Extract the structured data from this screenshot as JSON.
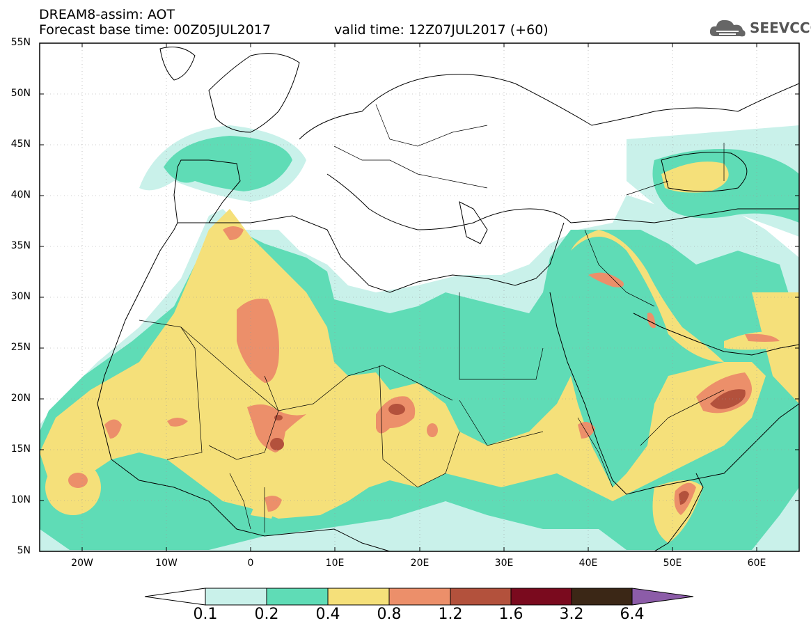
{
  "title": {
    "line1": "DREAM8-assim: AOT",
    "base": "Forecast base time: 00Z05JUL2017",
    "valid": "valid time: 12Z07JUL2017 (+60)"
  },
  "logo": {
    "text": "SEEVCCC",
    "icon": "cloud-icon"
  },
  "map": {
    "lat_labels": [
      "55N",
      "50N",
      "45N",
      "40N",
      "35N",
      "30N",
      "25N",
      "20N",
      "15N",
      "10N",
      "5N"
    ],
    "lon_labels": [
      "20W",
      "10W",
      "0",
      "10E",
      "20E",
      "30E",
      "40E",
      "50E",
      "60E"
    ],
    "lon_range": [
      -25,
      65
    ],
    "lat_range": [
      5,
      55
    ]
  },
  "colorbar": {
    "labels": [
      "0.1",
      "0.2",
      "0.4",
      "0.8",
      "1.2",
      "1.6",
      "3.2",
      "6.4"
    ],
    "colors": [
      "#c9f1ea",
      "#5fdcb6",
      "#f5e07a",
      "#ec8f6a",
      "#b3513c",
      "#7a0a1e",
      "#3b2716",
      "#8c5ca8"
    ]
  },
  "palette": {
    "c1": "#c9f1ea",
    "c2": "#5fdcb6",
    "c3": "#f5e07a",
    "c4": "#ec8f6a",
    "c5": "#b3513c",
    "c6": "#7a0a1e"
  }
}
